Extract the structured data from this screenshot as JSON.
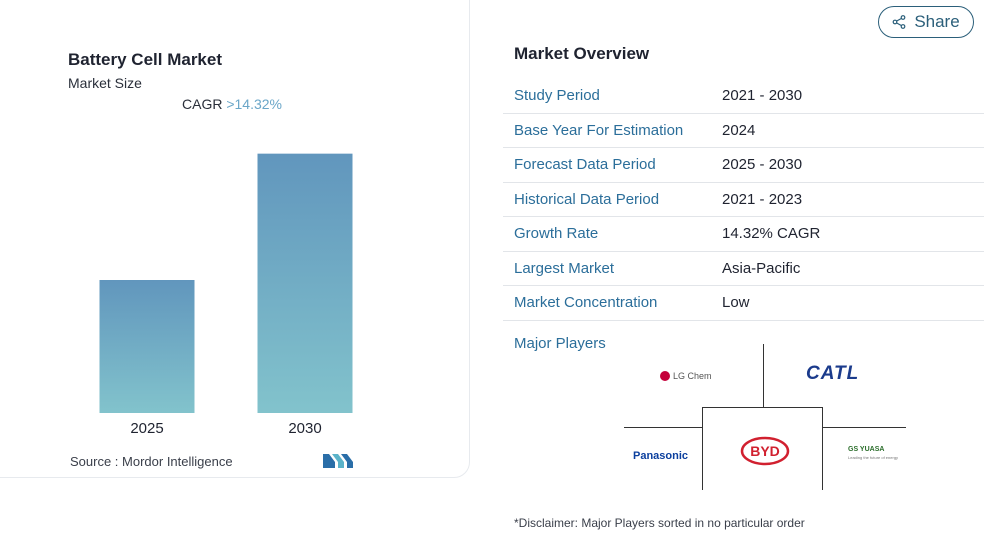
{
  "chart_card": {
    "title": "Battery Cell Market",
    "subtitle": "Market Size",
    "cagr_label": "CAGR",
    "cagr_value": ">14.32%",
    "source": "Source : Mordor Intelligence",
    "logo": "mordor-intelligence-logo"
  },
  "chart_data": {
    "type": "bar",
    "categories": [
      "2025",
      "2030"
    ],
    "values": [
      1.0,
      1.95
    ],
    "title": "",
    "xlabel": "",
    "ylabel": "",
    "ylim": [
      0,
      2
    ],
    "grid": false,
    "colors": {
      "top": "#6196bd",
      "bottom": "#82c3cc"
    }
  },
  "share": {
    "label": "Share",
    "icon": "share-icon",
    "color": "#2b5f7a"
  },
  "overview": {
    "title": "Market Overview",
    "rows": [
      {
        "label": "Study Period",
        "value": "2021 - 2030"
      },
      {
        "label": "Base Year For Estimation",
        "value": "2024"
      },
      {
        "label": "Forecast Data Period",
        "value": "2025 - 2030"
      },
      {
        "label": "Historical Data Period",
        "value": "2021 - 2023"
      },
      {
        "label": "Growth Rate",
        "value": "14.32% CAGR"
      },
      {
        "label": "Largest Market",
        "value": "Asia-Pacific"
      },
      {
        "label": "Market Concentration",
        "value": "Low"
      }
    ]
  },
  "major_players": {
    "title": "Major Players",
    "players": [
      {
        "name": "LG Chem"
      },
      {
        "name": "CATL"
      },
      {
        "name": "Panasonic"
      },
      {
        "name": "BYD"
      },
      {
        "name": "GS YUASA",
        "tagline": "Leading the future of energy"
      }
    ]
  },
  "disclaimer": "*Disclaimer: Major Players sorted in no particular order"
}
